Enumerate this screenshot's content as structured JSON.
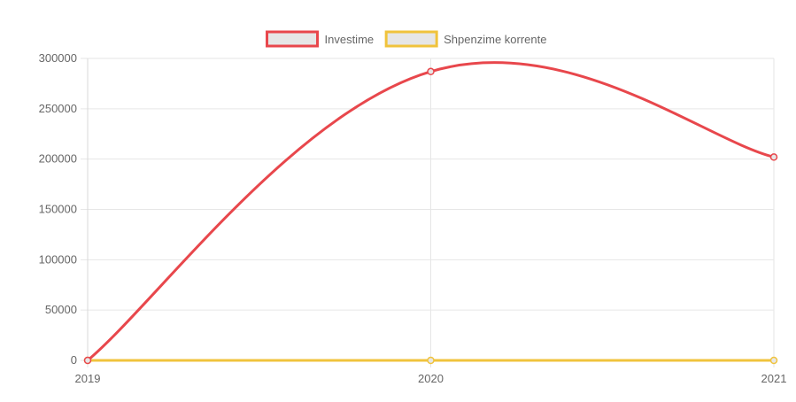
{
  "chart_data": {
    "type": "line",
    "x": [
      "2019",
      "2020",
      "2021"
    ],
    "series": [
      {
        "name": "Investime",
        "values": [
          0,
          287000,
          202000
        ],
        "color": "#e8474c"
      },
      {
        "name": "Shpenzime korrente",
        "values": [
          0,
          0,
          0
        ],
        "color": "#f0c33c"
      }
    ],
    "ylim": [
      0,
      300000
    ],
    "yticks": [
      "0",
      "50000",
      "100000",
      "150000",
      "200000",
      "250000",
      "300000"
    ],
    "xticks": [
      "2019",
      "2020",
      "2021"
    ],
    "legend_position": "top-center",
    "grid": true,
    "smooth": true
  }
}
